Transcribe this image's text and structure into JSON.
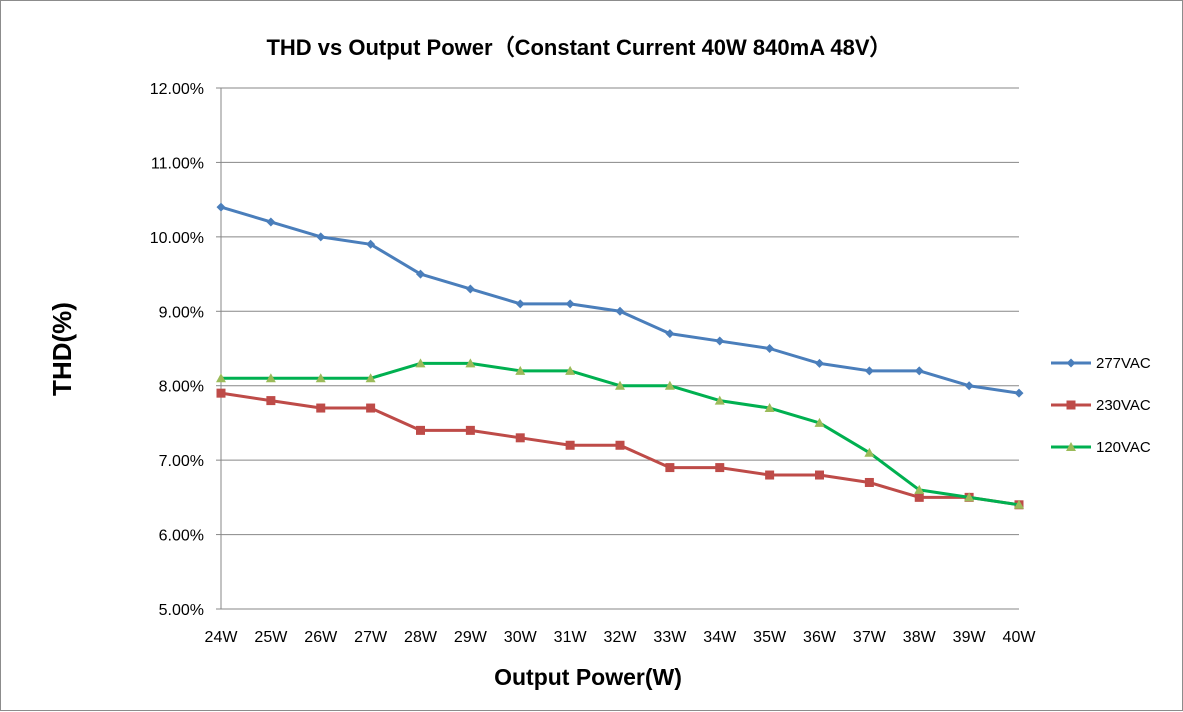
{
  "chart_data": {
    "type": "line",
    "title": "THD vs Output Power（Constant Current 40W  840mA 48V）",
    "xlabel": "Output Power(W)",
    "ylabel": "THD(%)",
    "categories": [
      "24W",
      "25W",
      "26W",
      "27W",
      "28W",
      "29W",
      "30W",
      "31W",
      "32W",
      "33W",
      "34W",
      "35W",
      "36W",
      "37W",
      "38W",
      "39W",
      "40W"
    ],
    "ylim": [
      5.0,
      12.0
    ],
    "yticks": [
      "5.00%",
      "6.00%",
      "7.00%",
      "8.00%",
      "9.00%",
      "10.00%",
      "11.00%",
      "12.00%"
    ],
    "grid": "horizontal",
    "legend_position": "right",
    "series": [
      {
        "name": "277VAC",
        "color": "#4a7ebb",
        "marker": "diamond",
        "values": [
          10.4,
          10.2,
          10.0,
          9.9,
          9.5,
          9.3,
          9.1,
          9.1,
          9.0,
          8.7,
          8.6,
          8.5,
          8.3,
          8.2,
          8.2,
          8.0,
          7.9
        ]
      },
      {
        "name": "230VAC",
        "color": "#be4b48",
        "marker": "square",
        "values": [
          7.9,
          7.8,
          7.7,
          7.7,
          7.4,
          7.4,
          7.3,
          7.2,
          7.2,
          6.9,
          6.9,
          6.8,
          6.8,
          6.7,
          6.5,
          6.5,
          6.4
        ]
      },
      {
        "name": "120VAC",
        "color": "#00b050",
        "marker": "triangle",
        "marker_color": "#9bbb59",
        "values": [
          8.1,
          8.1,
          8.1,
          8.1,
          8.3,
          8.3,
          8.2,
          8.2,
          8.0,
          8.0,
          7.8,
          7.7,
          7.5,
          7.1,
          6.6,
          6.5,
          6.4
        ]
      }
    ]
  }
}
